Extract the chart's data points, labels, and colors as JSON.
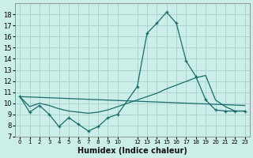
{
  "xlabel": "Humidex (Indice chaleur)",
  "bg_color": "#cceee8",
  "grid_color": "#aad4ce",
  "line_color": "#1a6b6b",
  "xlim": [
    -0.5,
    23.5
  ],
  "ylim": [
    7,
    19
  ],
  "yticks": [
    7,
    8,
    9,
    10,
    11,
    12,
    13,
    14,
    15,
    16,
    17,
    18
  ],
  "xtick_positions": [
    0,
    1,
    2,
    3,
    4,
    5,
    6,
    7,
    8,
    9,
    10,
    12,
    13,
    14,
    15,
    16,
    17,
    18,
    19,
    20,
    21,
    22,
    23
  ],
  "xtick_labels": [
    "0",
    "1",
    "2",
    "3",
    "4",
    "5",
    "6",
    "7",
    "8",
    "9",
    "10",
    "12",
    "13",
    "14",
    "15",
    "16",
    "17",
    "18",
    "19",
    "20",
    "21",
    "22",
    "23"
  ],
  "line1_x": [
    0,
    1,
    2,
    3,
    4,
    5,
    6,
    7,
    8,
    9,
    10,
    12,
    13,
    14,
    15,
    16,
    17,
    18,
    19,
    20,
    21,
    22,
    23
  ],
  "line1_y": [
    10.6,
    9.2,
    9.8,
    9.0,
    7.9,
    8.7,
    8.1,
    7.5,
    7.9,
    8.7,
    9.0,
    11.5,
    16.3,
    17.2,
    18.2,
    17.2,
    13.8,
    12.4,
    10.3,
    9.4,
    9.3,
    9.3,
    9.3
  ],
  "line2_x": [
    0,
    1,
    2,
    3,
    4,
    5,
    6,
    7,
    8,
    9,
    10,
    12,
    13,
    14,
    15,
    18,
    19,
    20,
    21,
    22,
    23
  ],
  "line2_y": [
    10.6,
    9.7,
    10.0,
    9.8,
    9.5,
    9.3,
    9.2,
    9.1,
    9.2,
    9.4,
    9.7,
    10.3,
    10.6,
    10.9,
    11.3,
    12.3,
    12.5,
    10.3,
    9.7,
    9.3,
    9.3
  ],
  "line3_x": [
    0,
    23
  ],
  "line3_y": [
    10.6,
    9.8
  ]
}
